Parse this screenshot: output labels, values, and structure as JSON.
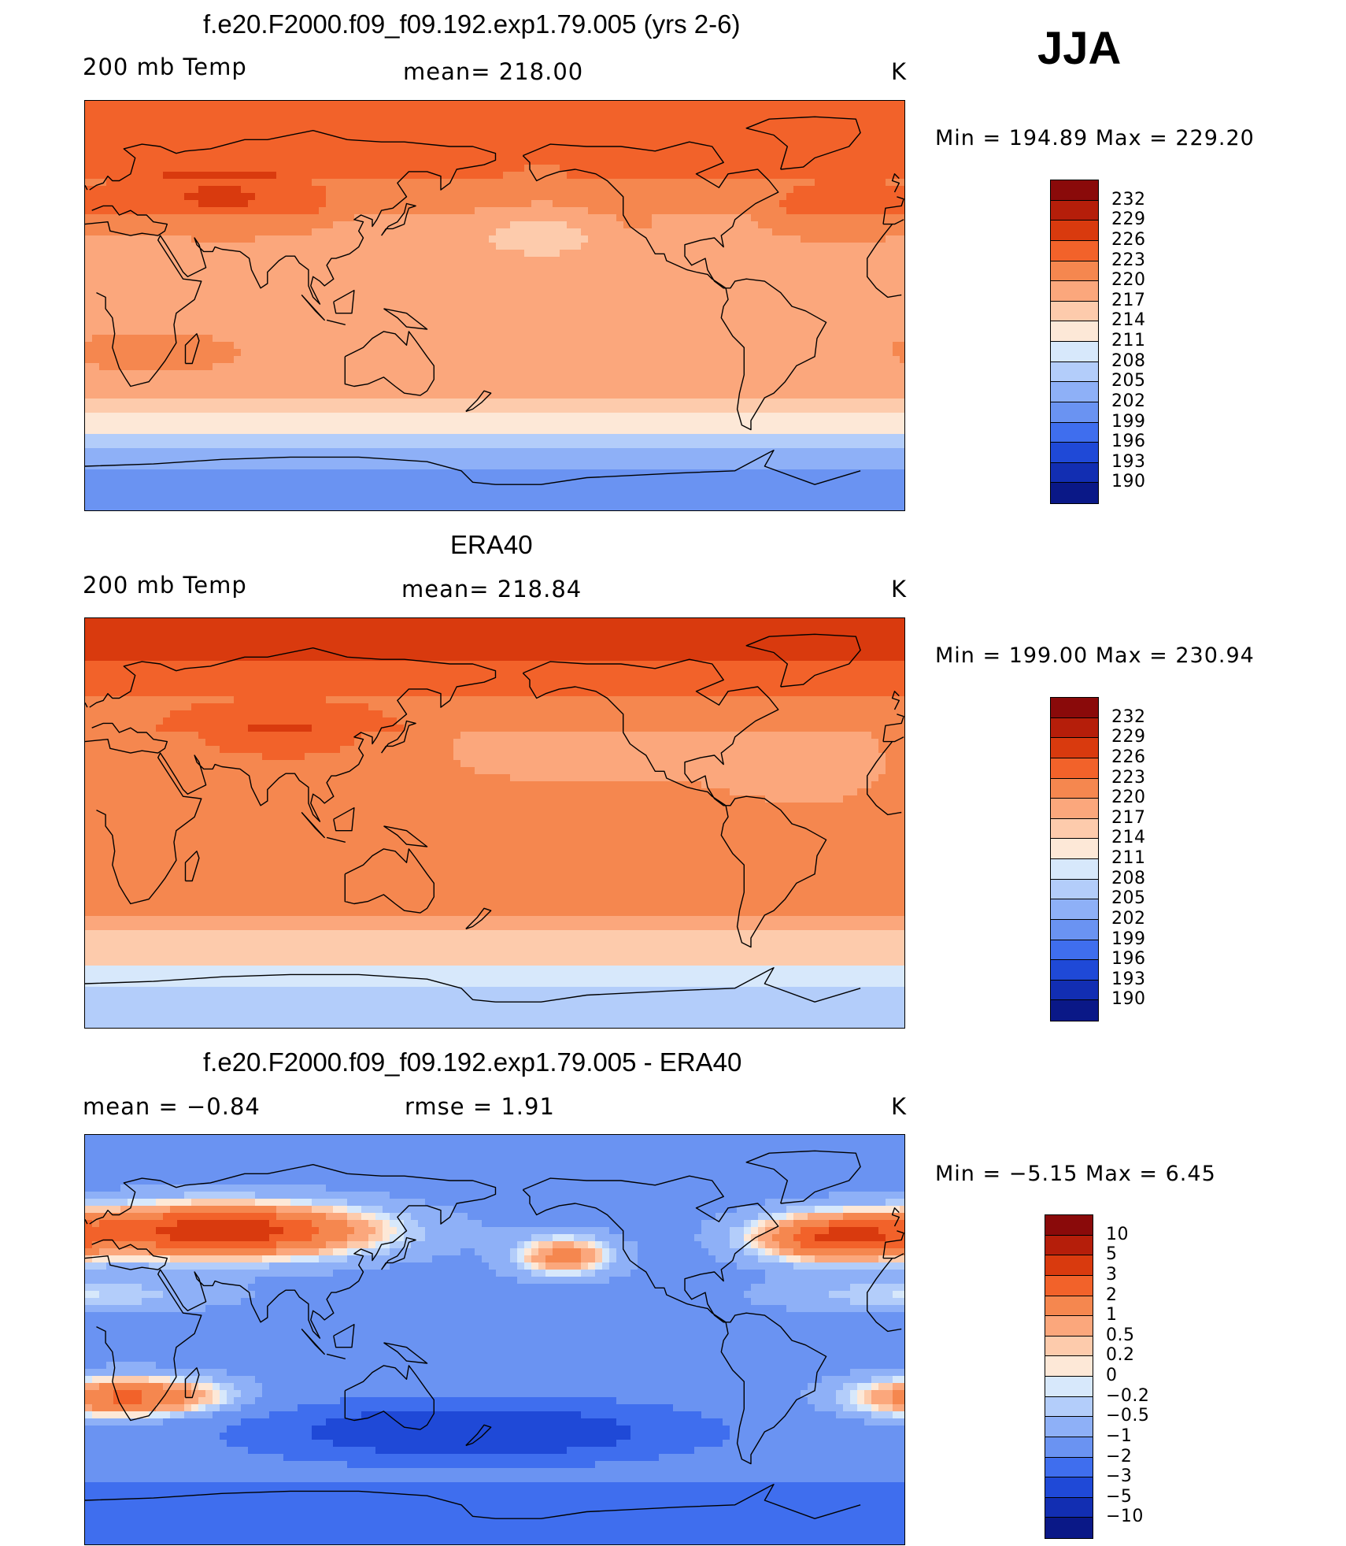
{
  "season": "JJA",
  "panels": [
    {
      "title": "f.e20.F2000.f09_f09.192.exp1.79.005 (yrs 2-6)",
      "left_label": "200 mb Temp",
      "mid_label": "mean= 218.00",
      "units": "K",
      "minmax": "Min  =  194.89  Max  =  229.20",
      "legend": [
        "232",
        "229",
        "226",
        "223",
        "220",
        "217",
        "214",
        "211",
        "208",
        "205",
        "202",
        "199",
        "196",
        "193",
        "190"
      ],
      "colors": [
        "#8a0a0a",
        "#b51e0a",
        "#d93a0e",
        "#f2622a",
        "#f5874f",
        "#fba77c",
        "#fdcbac",
        "#fde8d7",
        "#d7e8fb",
        "#b3cdfa",
        "#8eb0f7",
        "#6a93f2",
        "#3f6eee",
        "#1f49d7",
        "#122eb2",
        "#0a1887"
      ],
      "field": "model",
      "mean_value": 218.0,
      "min_value": 194.89,
      "max_value": 229.2
    },
    {
      "title": "ERA40",
      "left_label": "200 mb Temp",
      "mid_label": "mean= 218.84",
      "units": "K",
      "minmax": "Min  =  199.00  Max  =  230.94",
      "legend": [
        "232",
        "229",
        "226",
        "223",
        "220",
        "217",
        "214",
        "211",
        "208",
        "205",
        "202",
        "199",
        "196",
        "193",
        "190"
      ],
      "colors": [
        "#8a0a0a",
        "#b51e0a",
        "#d93a0e",
        "#f2622a",
        "#f5874f",
        "#fba77c",
        "#fdcbac",
        "#fde8d7",
        "#d7e8fb",
        "#b3cdfa",
        "#8eb0f7",
        "#6a93f2",
        "#3f6eee",
        "#1f49d7",
        "#122eb2",
        "#0a1887"
      ],
      "field": "obs",
      "mean_value": 218.84,
      "min_value": 199.0,
      "max_value": 230.94
    },
    {
      "title": "f.e20.F2000.f09_f09.192.exp1.79.005 - ERA40",
      "left_label": "mean =   −0.84",
      "mid_label": "rmse =    1.91",
      "units": "K",
      "minmax": "Min  =   −5.15  Max  =     6.45",
      "legend": [
        "10",
        "5",
        "3",
        "2",
        "1",
        "0.5",
        "0.2",
        "0",
        "−0.2",
        "−0.5",
        "−1",
        "−2",
        "−3",
        "−5",
        "−10"
      ],
      "colors": [
        "#8a0a0a",
        "#b51e0a",
        "#d93a0e",
        "#f2622a",
        "#f5874f",
        "#fba77c",
        "#fdcbac",
        "#fde8d7",
        "#d7e8fb",
        "#b3cdfa",
        "#8eb0f7",
        "#6a93f2",
        "#3f6eee",
        "#1f49d7",
        "#122eb2",
        "#0a1887"
      ],
      "field": "diff",
      "mean_value": -0.84,
      "rmse_value": 1.91,
      "min_value": -5.15,
      "max_value": 6.45
    }
  ]
}
